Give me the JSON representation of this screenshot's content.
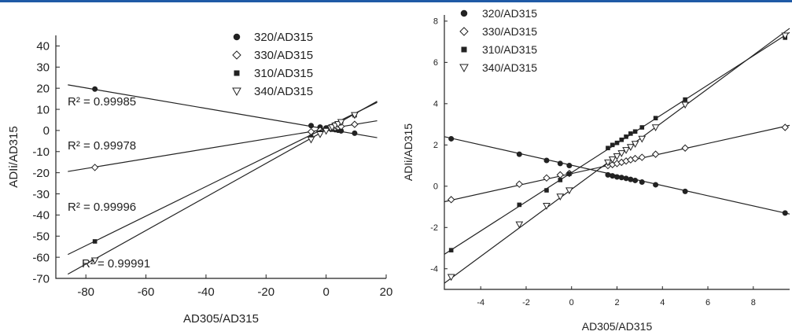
{
  "colors": {
    "top_rule": "#1f5aa6",
    "ink": "#222222"
  },
  "chart_data": [
    {
      "type": "scatter",
      "xlabel": "AD305/AD315",
      "ylabel": "ADIi/AD315",
      "xlim": [
        -90,
        20
      ],
      "ylim": [
        -70,
        45
      ],
      "xticks": [
        -80,
        -60,
        -40,
        -20,
        0,
        20
      ],
      "yticks": [
        40,
        30,
        20,
        10,
        0,
        -10,
        -20,
        -30,
        -40,
        -50,
        -60,
        -70
      ],
      "grid": false,
      "legend_position": "top-right",
      "series": [
        {
          "name": "320/AD315",
          "marker": "filled-circle",
          "points": [
            [
              -77,
              19.6
            ],
            [
              -5,
              2.3
            ],
            [
              -2,
              1.6
            ],
            [
              0,
              1.2
            ],
            [
              1.5,
              0.8
            ],
            [
              2,
              0.6
            ],
            [
              3,
              0.4
            ],
            [
              4,
              0.1
            ],
            [
              5,
              -0.2
            ],
            [
              9.5,
              -1.3
            ]
          ],
          "fit": [
            [
              -86,
              21.6
            ],
            [
              17,
              -3.4
            ]
          ],
          "r2": "R² = 0.99985"
        },
        {
          "name": "330/AD315",
          "marker": "open-diamond",
          "points": [
            [
              -77,
              -17.5
            ],
            [
              -5,
              -0.6
            ],
            [
              -2,
              0.1
            ],
            [
              0,
              0.5
            ],
            [
              1.5,
              0.9
            ],
            [
              2,
              1.1
            ],
            [
              3,
              1.3
            ],
            [
              4,
              1.6
            ],
            [
              5,
              1.9
            ],
            [
              9.5,
              2.9
            ]
          ],
          "fit": [
            [
              -86,
              -19.4
            ],
            [
              17,
              4.6
            ]
          ],
          "r2": "R² = 0.99978"
        },
        {
          "name": "310/AD315",
          "marker": "filled-square",
          "points": [
            [
              -77,
              -52.5
            ],
            [
              -5,
              -3.1
            ],
            [
              -2,
              -1
            ],
            [
              0,
              0.6
            ],
            [
              1.5,
              1.7
            ],
            [
              2,
              2
            ],
            [
              3,
              2.8
            ],
            [
              4,
              3.4
            ],
            [
              5,
              4.2
            ],
            [
              9.5,
              7.2
            ]
          ],
          "fit": [
            [
              -86,
              -58.7
            ],
            [
              17,
              13.3
            ]
          ],
          "r2": "R² = 0.99996"
        },
        {
          "name": "340/AD315",
          "marker": "open-triangle-down",
          "points": [
            [
              -77,
              -61.5
            ],
            [
              -5,
              -4.3
            ],
            [
              -2,
              -1.8
            ],
            [
              0,
              -0.2
            ],
            [
              1.5,
              1.1
            ],
            [
              2,
              1.5
            ],
            [
              3,
              2.3
            ],
            [
              4,
              3
            ],
            [
              5,
              4
            ],
            [
              9.5,
              7.3
            ]
          ],
          "fit": [
            [
              -86,
              -68
            ],
            [
              17,
              13.8
            ]
          ],
          "r2": "R² = 0.99991"
        }
      ]
    },
    {
      "type": "scatter",
      "xlabel": "AD305/AD315",
      "ylabel": "ADIi/AD315",
      "xlim": [
        -5.6,
        9.6
      ],
      "ylim": [
        -5,
        8.3
      ],
      "xticks": [
        -4,
        -2,
        0,
        2,
        4,
        6,
        8
      ],
      "yticks": [
        8,
        6,
        4,
        2,
        0,
        -2,
        -4
      ],
      "grid": false,
      "legend_position": "top-left",
      "series": [
        {
          "name": "320/AD315",
          "marker": "filled-circle",
          "points": [
            [
              -5.3,
              2.3
            ],
            [
              -2.3,
              1.55
            ],
            [
              -1.1,
              1.25
            ],
            [
              -0.5,
              1.1
            ],
            [
              -0.1,
              1.0
            ],
            [
              1.6,
              0.55
            ],
            [
              1.8,
              0.5
            ],
            [
              2.0,
              0.45
            ],
            [
              2.2,
              0.42
            ],
            [
              2.4,
              0.38
            ],
            [
              2.6,
              0.33
            ],
            [
              2.8,
              0.28
            ],
            [
              3.1,
              0.2
            ],
            [
              3.7,
              0.07
            ],
            [
              5.0,
              -0.25
            ],
            [
              9.4,
              -1.3
            ]
          ],
          "fit": [
            [
              -5.6,
              2.4
            ],
            [
              9.6,
              -1.35
            ]
          ]
        },
        {
          "name": "330/AD315",
          "marker": "open-diamond",
          "points": [
            [
              -5.3,
              -0.65
            ],
            [
              -2.3,
              0.1
            ],
            [
              -1.1,
              0.4
            ],
            [
              -0.5,
              0.55
            ],
            [
              -0.1,
              0.62
            ],
            [
              1.6,
              1.0
            ],
            [
              1.8,
              1.05
            ],
            [
              2.0,
              1.1
            ],
            [
              2.2,
              1.16
            ],
            [
              2.4,
              1.22
            ],
            [
              2.6,
              1.28
            ],
            [
              2.8,
              1.34
            ],
            [
              3.1,
              1.4
            ],
            [
              3.7,
              1.55
            ],
            [
              5.0,
              1.85
            ],
            [
              9.4,
              2.85
            ]
          ],
          "fit": [
            [
              -5.6,
              -0.75
            ],
            [
              9.6,
              2.95
            ]
          ]
        },
        {
          "name": "310/AD315",
          "marker": "filled-square",
          "points": [
            [
              -5.3,
              -3.1
            ],
            [
              -2.3,
              -0.9
            ],
            [
              -1.1,
              -0.2
            ],
            [
              -0.5,
              0.3
            ],
            [
              -0.1,
              0.6
            ],
            [
              1.6,
              1.85
            ],
            [
              1.8,
              2.0
            ],
            [
              2.0,
              2.1
            ],
            [
              2.2,
              2.25
            ],
            [
              2.4,
              2.4
            ],
            [
              2.6,
              2.55
            ],
            [
              2.8,
              2.65
            ],
            [
              3.1,
              2.85
            ],
            [
              3.7,
              3.3
            ],
            [
              5.0,
              4.2
            ],
            [
              9.4,
              7.2
            ]
          ],
          "fit": [
            [
              -5.6,
              -3.3
            ],
            [
              9.6,
              7.45
            ]
          ]
        },
        {
          "name": "340/AD315",
          "marker": "open-triangle-down",
          "points": [
            [
              -5.3,
              -4.4
            ],
            [
              -2.3,
              -1.85
            ],
            [
              -1.1,
              -0.95
            ],
            [
              -0.5,
              -0.5
            ],
            [
              -0.1,
              -0.2
            ],
            [
              1.6,
              1.15
            ],
            [
              1.8,
              1.3
            ],
            [
              2.0,
              1.45
            ],
            [
              2.2,
              1.6
            ],
            [
              2.4,
              1.75
            ],
            [
              2.6,
              1.9
            ],
            [
              2.8,
              2.05
            ],
            [
              3.1,
              2.3
            ],
            [
              3.7,
              2.85
            ],
            [
              5.0,
              3.95
            ],
            [
              9.4,
              7.3
            ]
          ],
          "fit": [
            [
              -5.6,
              -4.7
            ],
            [
              9.6,
              7.65
            ]
          ]
        }
      ]
    }
  ]
}
